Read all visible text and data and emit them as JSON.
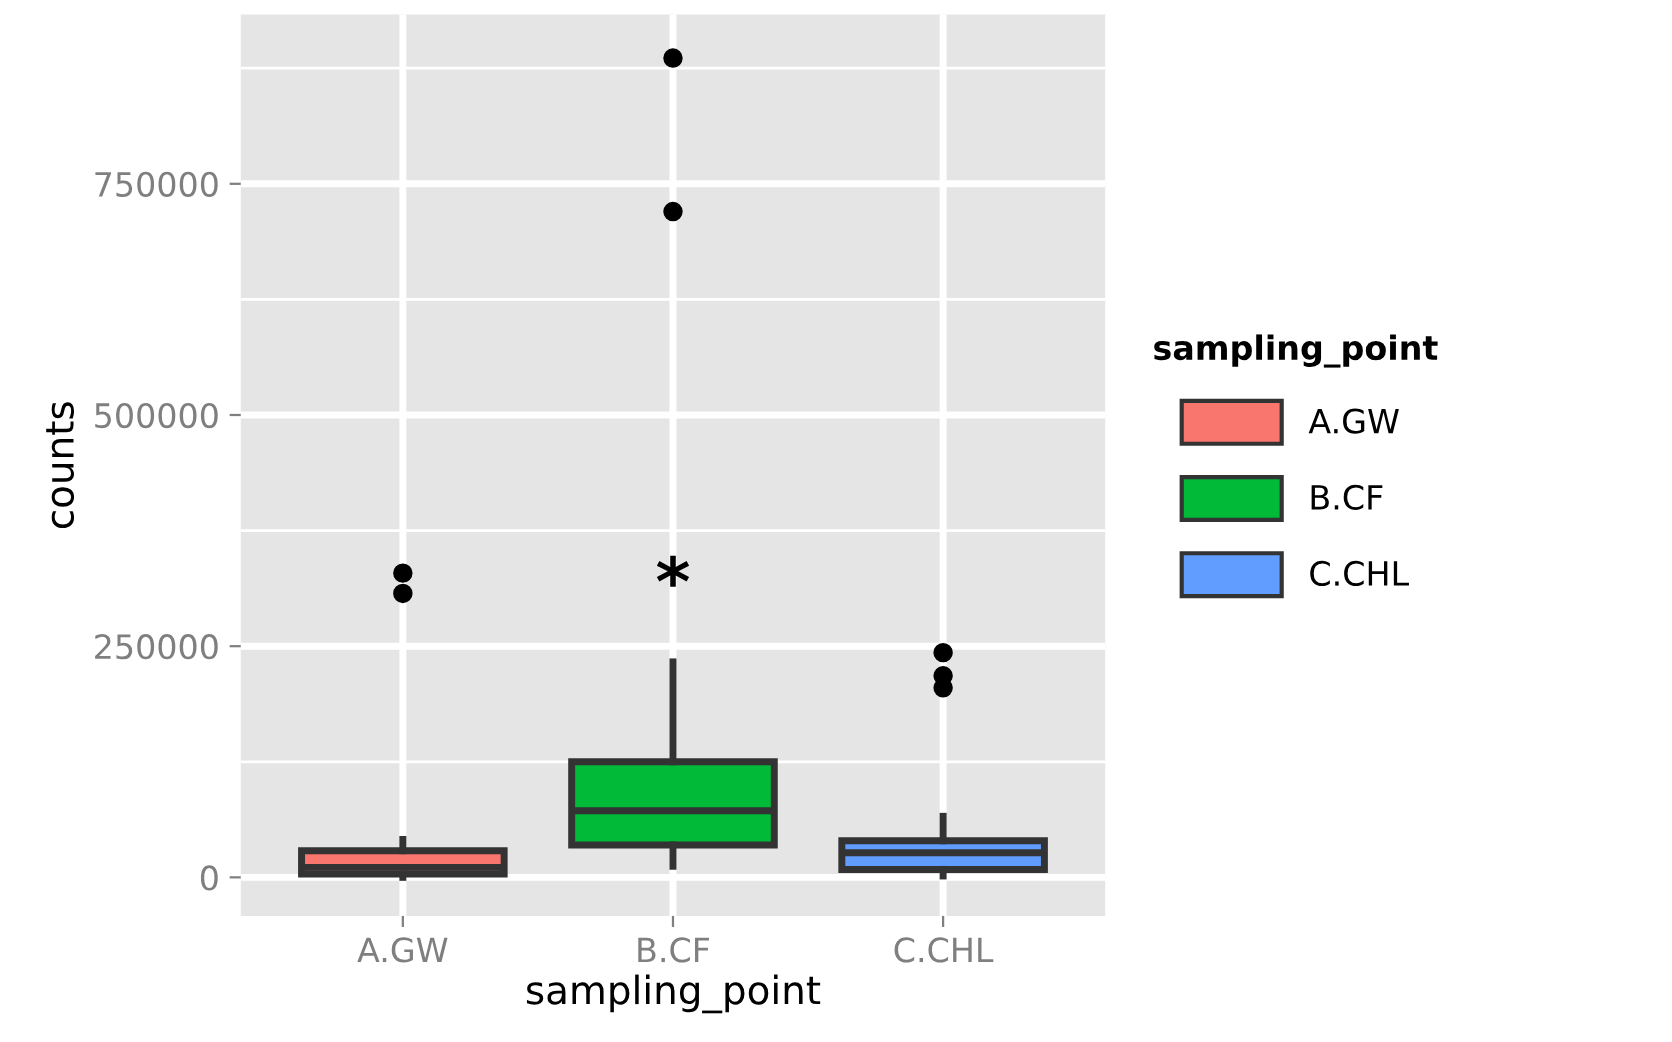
{
  "chart_data": {
    "type": "box",
    "xlabel": "sampling_point",
    "ylabel": "counts",
    "legend_title": "sampling_point",
    "legend": "right",
    "grid": true,
    "categories": [
      "A.GW",
      "B.CF",
      "C.CHL"
    ],
    "series": [
      {
        "name": "A.GW",
        "color": "#f8766d",
        "boxes": [
          {
            "low": 0,
            "q1": 3700,
            "median": 10800,
            "q3": 28800,
            "high": 41000,
            "outliers": [
              329000,
              307000
            ]
          },
          null,
          null
        ]
      },
      {
        "name": "B.CF",
        "color": "#00ba38",
        "boxes": [
          null,
          {
            "low": 12000,
            "q1": 35000,
            "median": 72000,
            "q3": 125000,
            "high": 233000,
            "outliers": [
              886000,
              720000
            ]
          },
          null
        ]
      },
      {
        "name": "C.CHL",
        "color": "#619cff",
        "boxes": [
          null,
          null,
          {
            "low": 1500,
            "q1": 8600,
            "median": 26600,
            "q3": 39600,
            "high": 66000,
            "outliers": [
              243000,
              218000,
              205000
            ]
          }
        ]
      }
    ],
    "annotations": [
      "*"
    ],
    "ylim": [
      -41700,
      933000
    ],
    "yticks": [
      0,
      250000,
      500000,
      750000
    ]
  }
}
